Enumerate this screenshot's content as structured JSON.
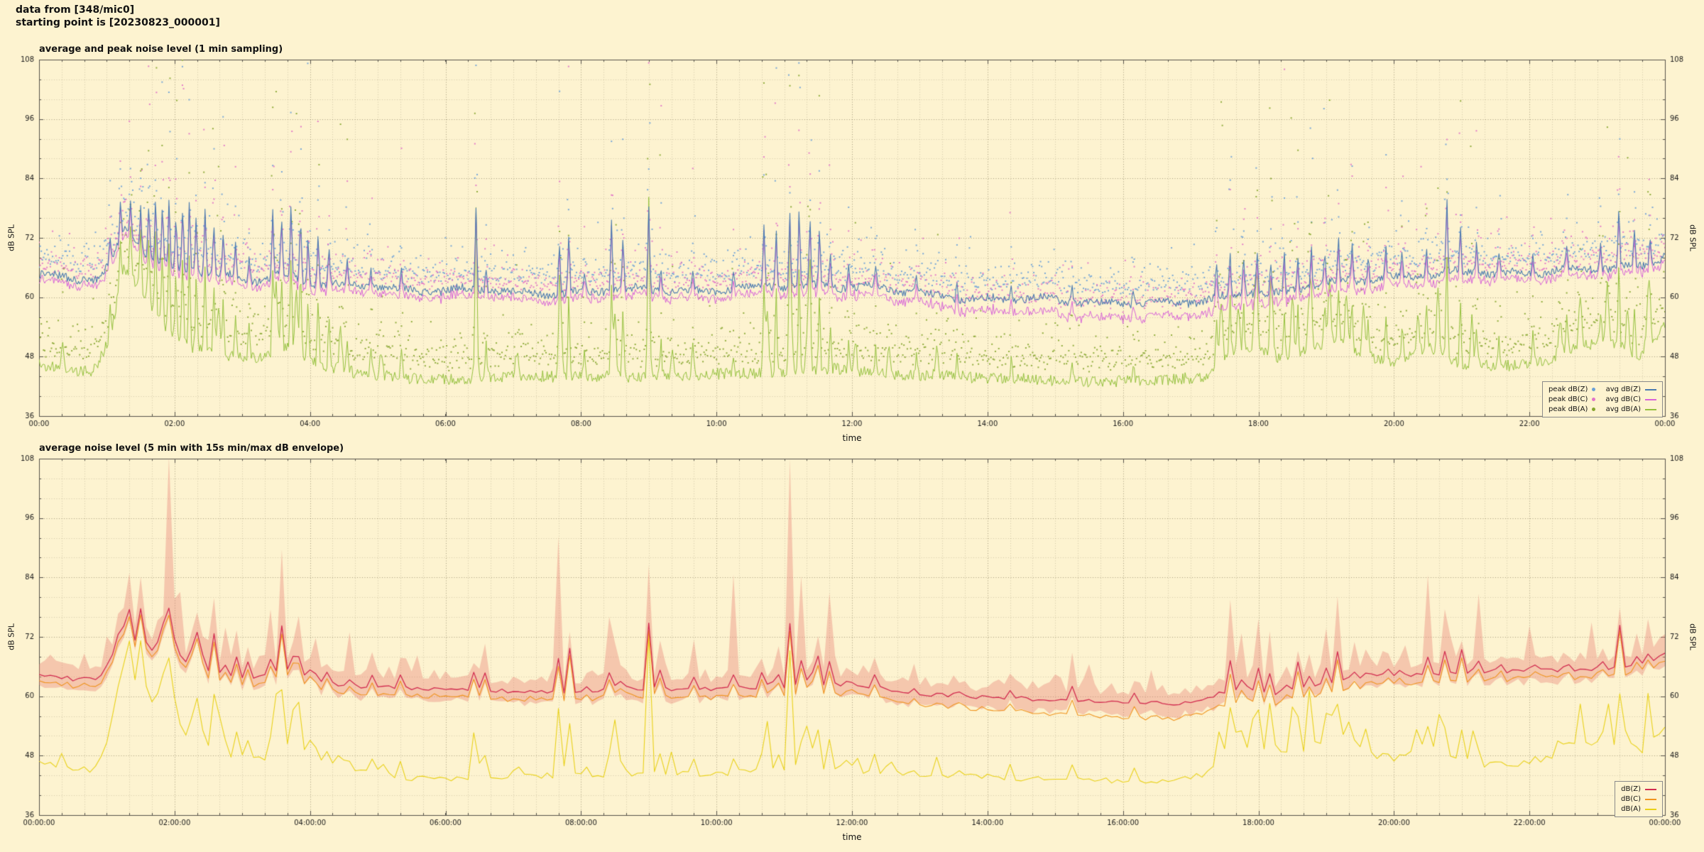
{
  "header": {
    "line1": "data from [348/mic0]",
    "line2": "starting point is [20230823_000001]"
  },
  "colors": {
    "background": "#fdf3d0",
    "plot_border": "#55524a",
    "grid_major": "rgba(95,85,55,0.55)",
    "grid_minor": "rgba(95,85,55,0.26)",
    "tick_text": "#1a1a1a",
    "legend_border": "#8a8a8a"
  },
  "chart_data": [
    {
      "type": "line+scatter",
      "title": "average and peak noise level (1 min sampling)",
      "xlabel": "time",
      "ylabel_left": "dB SPL",
      "ylabel_right": "dB SPL",
      "ylim": [
        36,
        108
      ],
      "yticks": [
        36,
        48,
        60,
        72,
        84,
        96,
        108
      ],
      "xtick_positions": [
        0,
        2,
        4,
        6,
        8,
        10,
        12,
        14,
        16,
        18,
        20,
        22,
        24
      ],
      "xtick_labels": [
        "00:00",
        "02:00",
        "04:00",
        "06:00",
        "08:00",
        "10:00",
        "12:00",
        "14:00",
        "16:00",
        "18:00",
        "20:00",
        "22:00",
        "00:00"
      ],
      "sampling": "1 min",
      "grid": true,
      "legend_position": "lower right",
      "series": [
        {
          "name": "peak dB(Z)",
          "kind": "scatter",
          "color": "#6aa0d8"
        },
        {
          "name": "peak dB(C)",
          "kind": "scatter",
          "color": "#e273c8"
        },
        {
          "name": "peak dB(A)",
          "kind": "scatter",
          "color": "#86a62f"
        },
        {
          "name": "avg dB(Z)",
          "kind": "line",
          "color": "#4a7ab0"
        },
        {
          "name": "avg dB(C)",
          "kind": "line",
          "color": "#d863d8"
        },
        {
          "name": "avg dB(A)",
          "kind": "line",
          "color": "#94c13d"
        }
      ]
    },
    {
      "type": "line+band",
      "title": "average noise level (5 min with 15s min/max dB envelope)",
      "xlabel": "time",
      "ylabel_left": "dB SPL",
      "ylabel_right": "dB SPL",
      "ylim": [
        36,
        108
      ],
      "yticks": [
        36,
        48,
        60,
        72,
        84,
        96,
        108
      ],
      "xtick_positions": [
        0,
        2,
        4,
        6,
        8,
        10,
        12,
        14,
        16,
        18,
        20,
        22,
        24
      ],
      "xtick_labels": [
        "00:00:00",
        "02:00:00",
        "04:00:00",
        "06:00:00",
        "08:00:00",
        "10:00:00",
        "12:00:00",
        "14:00:00",
        "16:00:00",
        "18:00:00",
        "20:00:00",
        "22:00:00",
        "00:00:00"
      ],
      "sampling": "5 min",
      "grid": true,
      "legend_position": "lower right",
      "band_color": "rgba(232,128,116,0.38)",
      "series": [
        {
          "name": "dB(Z)",
          "kind": "line",
          "color": "#d22c50"
        },
        {
          "name": "dB(C)",
          "kind": "line",
          "color": "#f0941e"
        },
        {
          "name": "dB(A)",
          "kind": "line",
          "color": "#e9d118"
        }
      ]
    }
  ],
  "signal_model": {
    "seed": 1234,
    "hours": 24,
    "spike_width": 0.013,
    "green_spike_width": 0.02,
    "keypoints_dbz": [
      [
        0,
        64.5
      ],
      [
        0.5,
        63.5
      ],
      [
        0.9,
        63.5
      ],
      [
        1.1,
        68
      ],
      [
        1.25,
        74
      ],
      [
        1.45,
        71
      ],
      [
        1.7,
        68
      ],
      [
        2.0,
        66
      ],
      [
        2.6,
        64.5
      ],
      [
        3.2,
        63.5
      ],
      [
        3.6,
        65
      ],
      [
        4.0,
        63
      ],
      [
        4.5,
        62
      ],
      [
        5.0,
        62
      ],
      [
        5.6,
        61.5
      ],
      [
        6.2,
        61.5
      ],
      [
        7.0,
        61
      ],
      [
        8.0,
        61
      ],
      [
        9.0,
        61.5
      ],
      [
        10.0,
        61.5
      ],
      [
        11.0,
        62
      ],
      [
        11.6,
        62.5
      ],
      [
        12.2,
        62
      ],
      [
        13.0,
        60.5
      ],
      [
        14.0,
        59.8
      ],
      [
        15.0,
        59.3
      ],
      [
        16.0,
        59
      ],
      [
        16.8,
        58.5
      ],
      [
        17.3,
        59.5
      ],
      [
        17.8,
        61.5
      ],
      [
        18.3,
        60.5
      ],
      [
        18.8,
        62
      ],
      [
        19.3,
        63.5
      ],
      [
        19.8,
        64
      ],
      [
        20.5,
        64.5
      ],
      [
        21.2,
        65
      ],
      [
        22.0,
        65.2
      ],
      [
        22.8,
        65.5
      ],
      [
        23.4,
        66
      ],
      [
        23.8,
        67
      ],
      [
        24,
        69
      ]
    ],
    "offset_dbc": [
      [
        0,
        -1.2
      ],
      [
        4,
        -1.3
      ],
      [
        8,
        -1.3
      ],
      [
        12,
        -1.6
      ],
      [
        13.5,
        -2.2
      ],
      [
        15,
        -2.8
      ],
      [
        16.5,
        -3.0
      ],
      [
        17.5,
        -2.4
      ],
      [
        18.5,
        -2.0
      ],
      [
        20,
        -1.6
      ],
      [
        22,
        -1.3
      ],
      [
        24,
        -1.2
      ]
    ],
    "keypoints_dba": [
      [
        0,
        46.5
      ],
      [
        0.4,
        45.5
      ],
      [
        0.8,
        45
      ],
      [
        1.05,
        52
      ],
      [
        1.25,
        66
      ],
      [
        1.5,
        62
      ],
      [
        1.8,
        55
      ],
      [
        2.2,
        50
      ],
      [
        2.8,
        48
      ],
      [
        3.3,
        47.5
      ],
      [
        3.7,
        50
      ],
      [
        4.2,
        46
      ],
      [
        4.8,
        44.5
      ],
      [
        5.5,
        43.5
      ],
      [
        6.2,
        43.5
      ],
      [
        7.0,
        44
      ],
      [
        8.0,
        44
      ],
      [
        9.0,
        44
      ],
      [
        10.0,
        44.5
      ],
      [
        11.0,
        45
      ],
      [
        11.8,
        45.5
      ],
      [
        12.5,
        44.5
      ],
      [
        13.5,
        44
      ],
      [
        14.5,
        43.5
      ],
      [
        15.5,
        43
      ],
      [
        16.5,
        43
      ],
      [
        17.2,
        44
      ],
      [
        17.6,
        49
      ],
      [
        18.0,
        50
      ],
      [
        18.4,
        47
      ],
      [
        18.8,
        50
      ],
      [
        19.2,
        51
      ],
      [
        19.6,
        48
      ],
      [
        20.0,
        47
      ],
      [
        20.5,
        50
      ],
      [
        21.0,
        46.5
      ],
      [
        21.6,
        46
      ],
      [
        22.2,
        47
      ],
      [
        22.7,
        50
      ],
      [
        23.2,
        51
      ],
      [
        23.6,
        48
      ],
      [
        24,
        54
      ]
    ],
    "spikes": [
      [
        1.05,
        5
      ],
      [
        1.2,
        7
      ],
      [
        1.35,
        8
      ],
      [
        1.5,
        9
      ],
      [
        1.62,
        10
      ],
      [
        1.72,
        12
      ],
      [
        1.82,
        11
      ],
      [
        1.92,
        13
      ],
      [
        2.02,
        10
      ],
      [
        2.12,
        12
      ],
      [
        2.22,
        14
      ],
      [
        2.32,
        11
      ],
      [
        2.45,
        13
      ],
      [
        2.58,
        10
      ],
      [
        2.72,
        8
      ],
      [
        2.9,
        6
      ],
      [
        3.1,
        5
      ],
      [
        3.45,
        13
      ],
      [
        3.58,
        11
      ],
      [
        3.72,
        14
      ],
      [
        3.86,
        12
      ],
      [
        3.97,
        9
      ],
      [
        4.12,
        10
      ],
      [
        4.28,
        7
      ],
      [
        4.55,
        5
      ],
      [
        4.9,
        4
      ],
      [
        5.35,
        4
      ],
      [
        6.45,
        16
      ],
      [
        6.6,
        5
      ],
      [
        7.68,
        10
      ],
      [
        7.82,
        12
      ],
      [
        8.05,
        4
      ],
      [
        8.45,
        14
      ],
      [
        8.62,
        10
      ],
      [
        9.0,
        16
      ],
      [
        9.18,
        5
      ],
      [
        9.65,
        4
      ],
      [
        10.25,
        3
      ],
      [
        10.7,
        13
      ],
      [
        10.88,
        12
      ],
      [
        11.08,
        15
      ],
      [
        11.22,
        16
      ],
      [
        11.38,
        14
      ],
      [
        11.52,
        11
      ],
      [
        11.68,
        7
      ],
      [
        11.95,
        5
      ],
      [
        12.35,
        4
      ],
      [
        12.95,
        3
      ],
      [
        13.55,
        3
      ],
      [
        14.35,
        3
      ],
      [
        15.25,
        3
      ],
      [
        16.15,
        3
      ],
      [
        17.38,
        7
      ],
      [
        17.58,
        8
      ],
      [
        17.78,
        7
      ],
      [
        17.98,
        8
      ],
      [
        18.18,
        6
      ],
      [
        18.38,
        8
      ],
      [
        18.58,
        7
      ],
      [
        18.78,
        8
      ],
      [
        18.98,
        6
      ],
      [
        19.18,
        8
      ],
      [
        19.38,
        7
      ],
      [
        19.62,
        5
      ],
      [
        19.88,
        6
      ],
      [
        20.12,
        5
      ],
      [
        20.48,
        6
      ],
      [
        20.78,
        15
      ],
      [
        20.98,
        9
      ],
      [
        21.22,
        6
      ],
      [
        21.55,
        4
      ],
      [
        22.05,
        4
      ],
      [
        22.55,
        5
      ],
      [
        23.05,
        5
      ],
      [
        23.32,
        12
      ],
      [
        23.55,
        7
      ],
      [
        23.78,
        6
      ]
    ],
    "green_spikes": [
      [
        0.35,
        5
      ],
      [
        2.65,
        10
      ],
      [
        3.5,
        14
      ],
      [
        3.8,
        12
      ],
      [
        4.45,
        8
      ],
      [
        5.05,
        5
      ],
      [
        6.45,
        12
      ],
      [
        7.05,
        5
      ],
      [
        7.7,
        12
      ],
      [
        8.5,
        13
      ],
      [
        9.0,
        14
      ],
      [
        9.35,
        6
      ],
      [
        10.75,
        12
      ],
      [
        11.1,
        13
      ],
      [
        11.35,
        12
      ],
      [
        12.05,
        6
      ],
      [
        12.55,
        5
      ],
      [
        13.25,
        5
      ],
      [
        17.45,
        12
      ],
      [
        17.7,
        9
      ],
      [
        17.95,
        13
      ],
      [
        18.2,
        11
      ],
      [
        18.5,
        13
      ],
      [
        18.75,
        10
      ],
      [
        19.05,
        13
      ],
      [
        19.3,
        11
      ],
      [
        19.55,
        9
      ],
      [
        20.35,
        7
      ],
      [
        20.65,
        12
      ],
      [
        21.15,
        9
      ],
      [
        22.45,
        7
      ],
      [
        22.75,
        10
      ],
      [
        23.15,
        12
      ],
      [
        23.45,
        9
      ],
      [
        23.75,
        10
      ]
    ]
  }
}
